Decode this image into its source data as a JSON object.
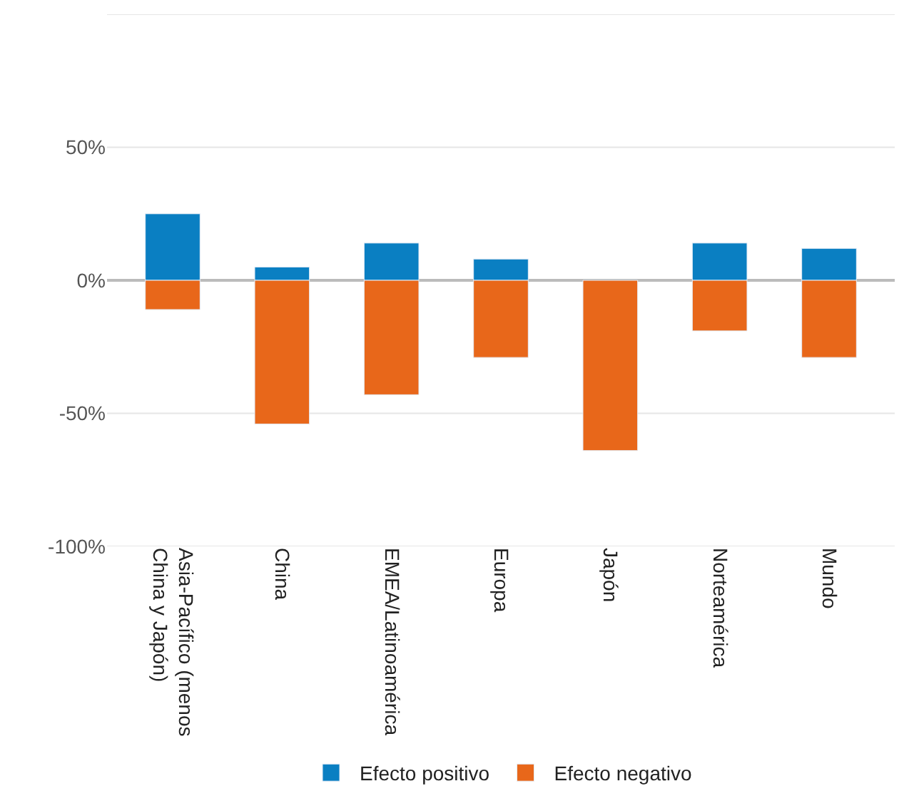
{
  "chart_data": {
    "type": "bar",
    "stacked": true,
    "categories": [
      "Asia-Pacífico (menos China y Japón)",
      "China",
      "EMEA/Latinoamérica",
      "Europa",
      "Japón",
      "Norteamérica",
      "Mundo"
    ],
    "series": [
      {
        "name": "Efecto positivo",
        "color": "#0a7fc2",
        "values": [
          25,
          5,
          14,
          8,
          null,
          14,
          12
        ]
      },
      {
        "name": "Efecto negativo",
        "color": "#e8671a",
        "values": [
          -11,
          -54,
          -43,
          -29,
          -64,
          -19,
          -29
        ]
      }
    ],
    "ylim": [
      -100,
      100
    ],
    "yticks": [
      {
        "value": -100,
        "label": "-100%"
      },
      {
        "value": -50,
        "label": "-50%"
      },
      {
        "value": 0,
        "label": "0%"
      },
      {
        "value": 50,
        "label": "50%"
      },
      {
        "value": 100,
        "label": null
      }
    ],
    "grid": "y",
    "legend": "bottom"
  }
}
